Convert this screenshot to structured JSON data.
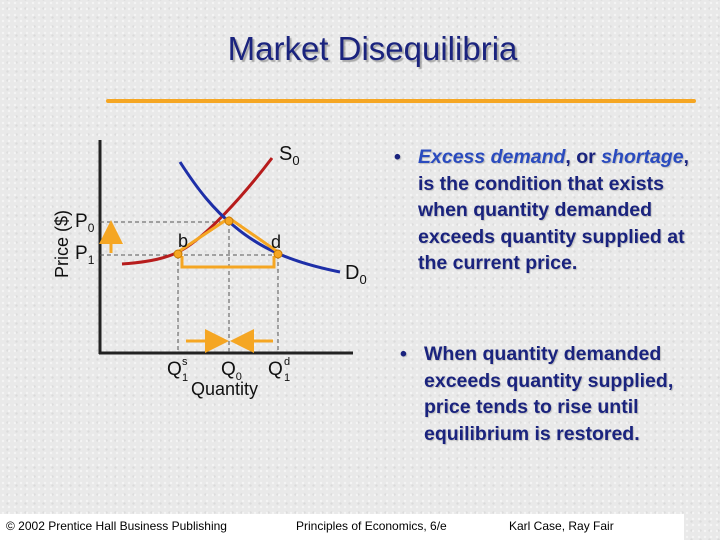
{
  "slide": {
    "title": "Market Disequilibria",
    "rule_color": "#f5a623",
    "title_color": "#1a237e"
  },
  "diagram": {
    "supply_label": "S",
    "supply_sub": "0",
    "demand_label": "D",
    "demand_sub": "0",
    "price_axis_label": "Price ($)",
    "p0_label": "P",
    "p0_sub": "0",
    "p1_label": "P",
    "p1_sub": "1",
    "point_b": "b",
    "point_d": "d",
    "qs_label": "Q",
    "qs_sup": "s",
    "qs_sub": "1",
    "q0_label": "Q",
    "q0_sub": "0",
    "qd_label": "Q",
    "qd_sup": "d",
    "qd_sub": "1",
    "quantity_axis_label": "Quantity",
    "supply_color": "#b71c1c",
    "demand_color": "#1e2fa8",
    "arrow_color": "#f5a623"
  },
  "bullets": {
    "b1_dot": "•",
    "b1_em1": "Excess demand",
    "b1_mid": ", or ",
    "b1_em2": "shortage",
    "b1_rest": ", is the condition that exists when quantity demanded exceeds quantity supplied at the current price.",
    "b2_dot": "•",
    "b2_text": "When quantity demanded exceeds quantity supplied, price tends to rise until equilibrium is restored."
  },
  "footer": {
    "copyright": "© 2002 Prentice Hall Business Publishing",
    "book": "Principles of Economics, 6/e",
    "authors": "Karl Case, Ray Fair"
  }
}
